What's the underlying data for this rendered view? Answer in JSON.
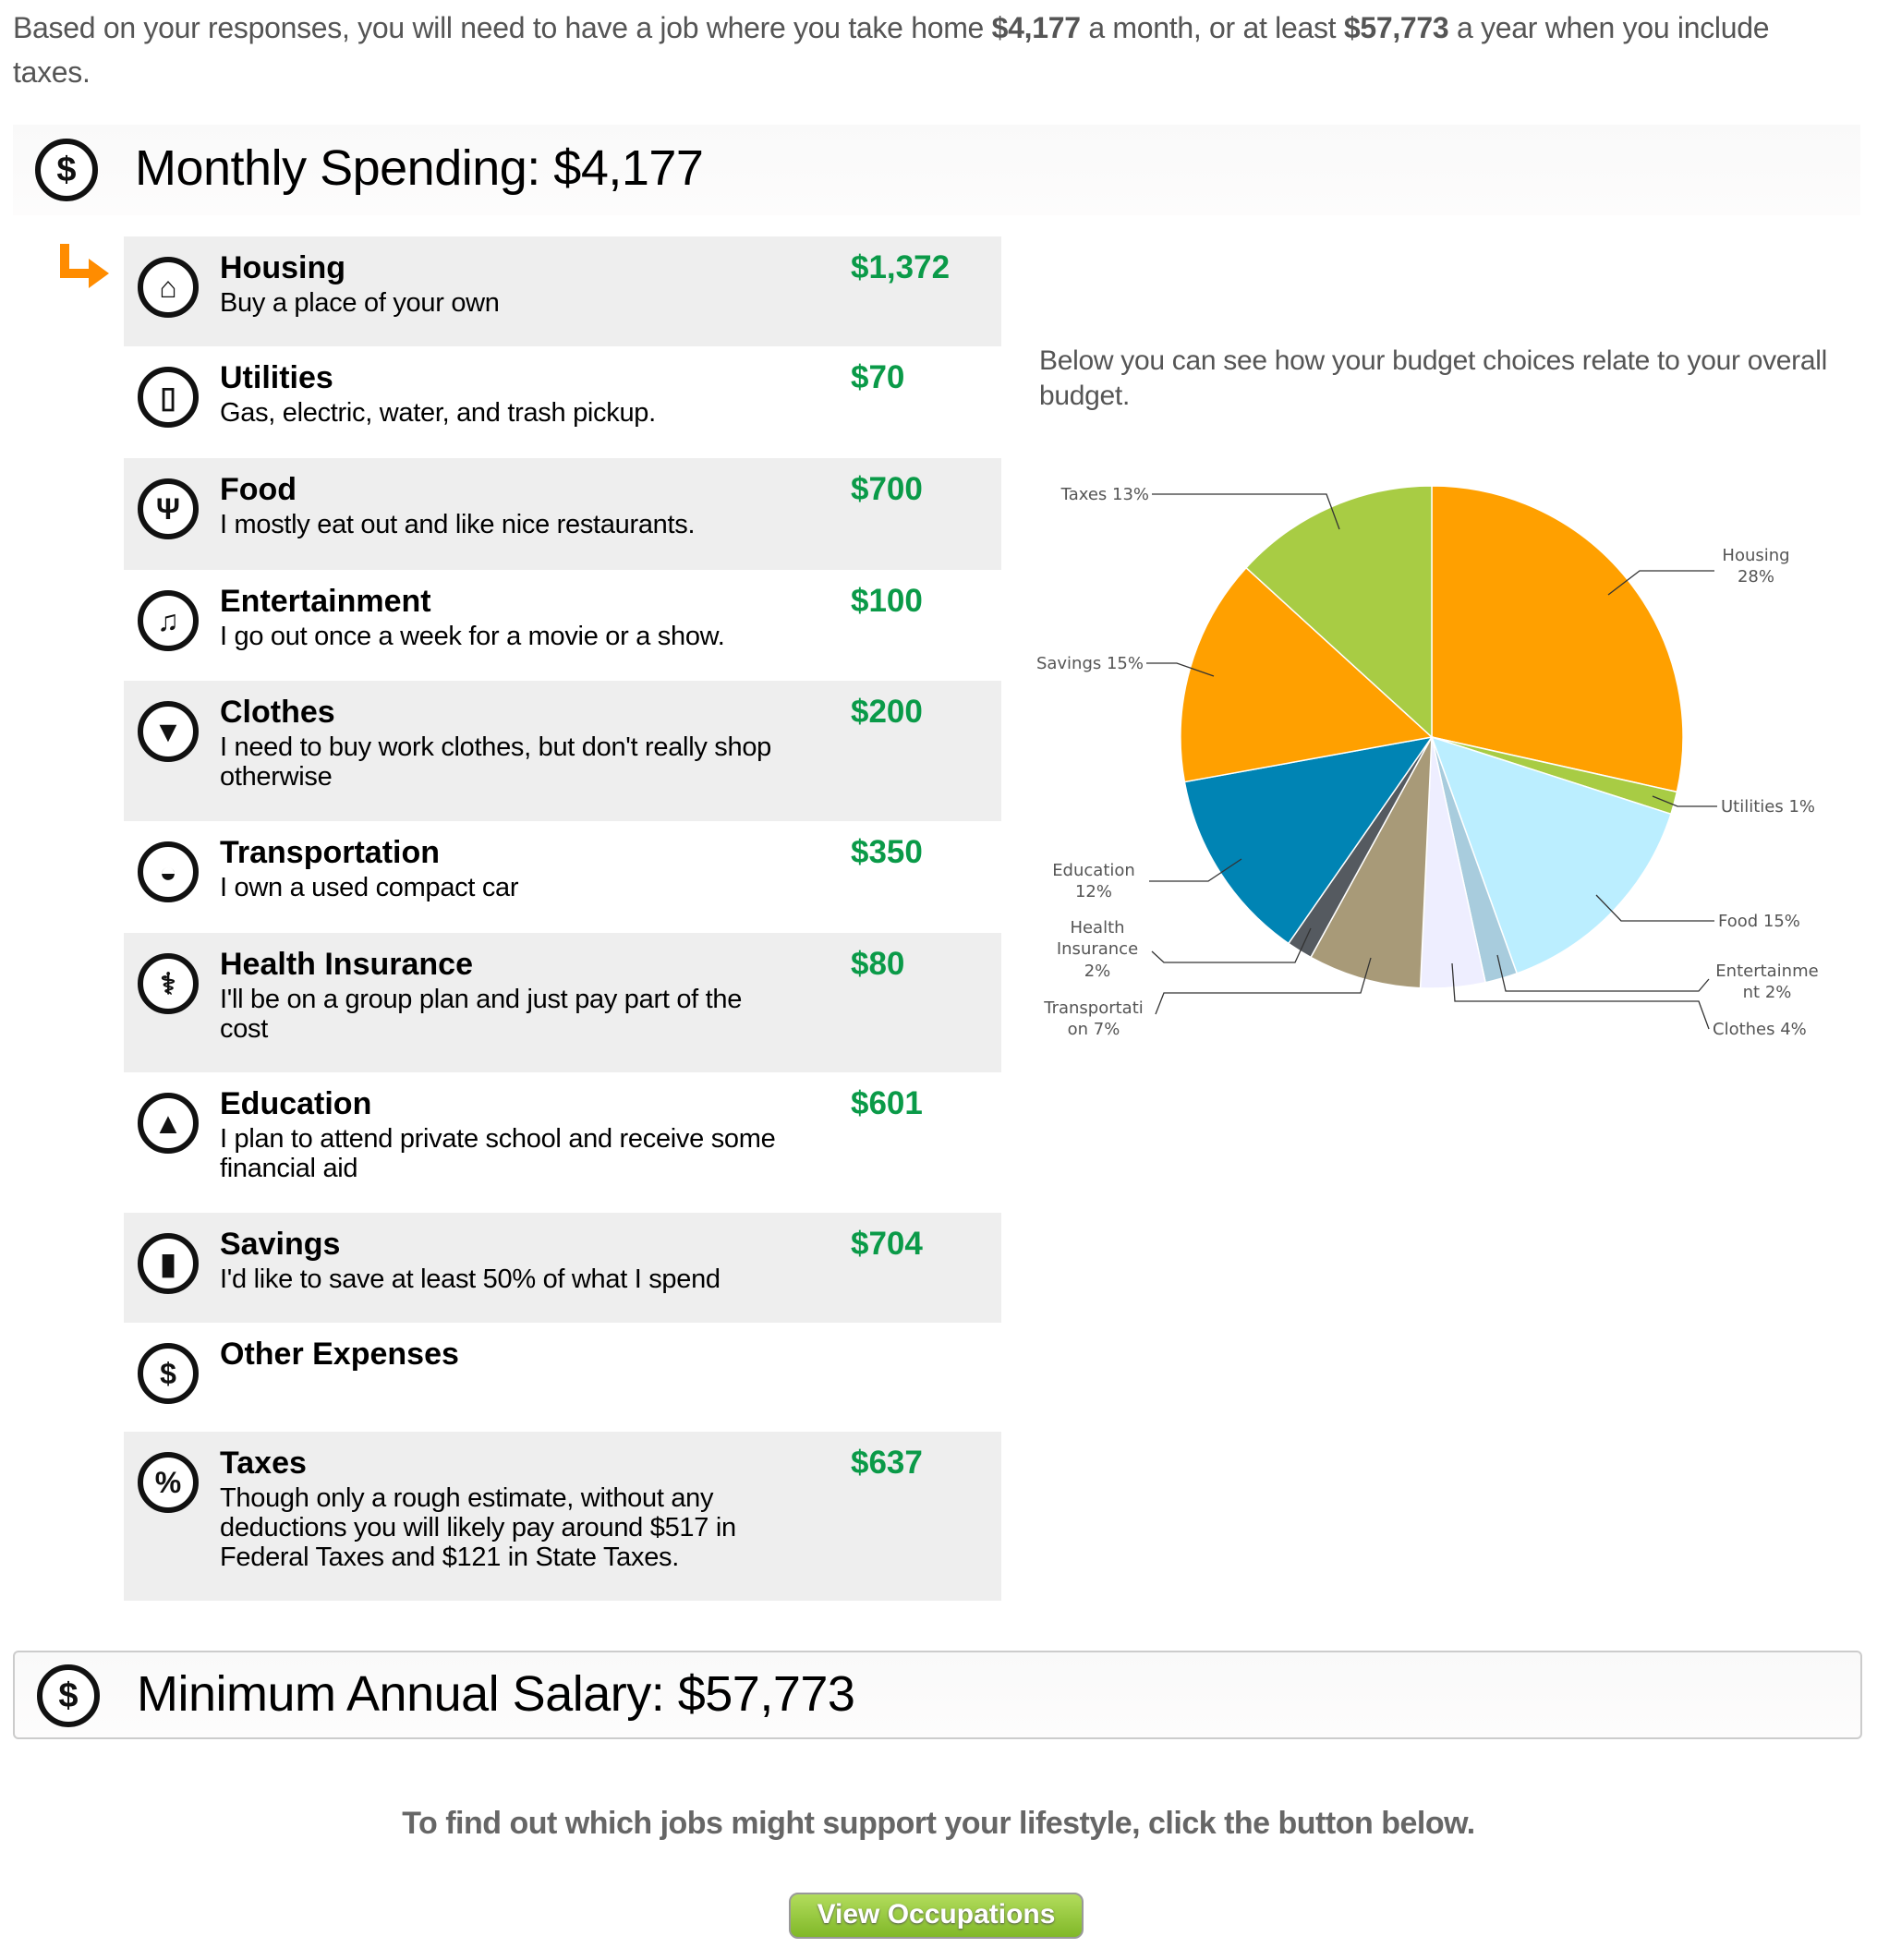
{
  "intro": {
    "text_1": "Based on your responses, you will need to have a job where you take home ",
    "monthly": "$4,177",
    "text_2": " a month, or at least ",
    "annual": "$57,773",
    "text_3": " a year when you include taxes."
  },
  "monthly_header": {
    "icon": "dollar-icon",
    "title": "Monthly Spending: $4,177"
  },
  "rows": [
    {
      "icon": "house-icon",
      "glyph": "⌂",
      "title": "Housing",
      "desc": "Buy a place of your own",
      "amount": "$1,372"
    },
    {
      "icon": "phone-icon",
      "glyph": "▯",
      "title": "Utilities",
      "desc": "Gas, electric, water, and trash pickup.",
      "amount": "$70"
    },
    {
      "icon": "fork-knife-icon",
      "glyph": "Ψ",
      "title": "Food",
      "desc": "I mostly eat out and like nice restaurants.",
      "amount": "$700"
    },
    {
      "icon": "music-note-icon",
      "glyph": "♫",
      "title": "Entertainment",
      "desc": "I go out once a week for a movie or a show.",
      "amount": "$100"
    },
    {
      "icon": "shirt-icon",
      "glyph": "▼",
      "title": "Clothes",
      "desc": "I need to buy work clothes, but don't really shop otherwise",
      "amount": "$200"
    },
    {
      "icon": "car-icon",
      "glyph": "◒",
      "title": "Transportation",
      "desc": "I own a used compact car",
      "amount": "$350"
    },
    {
      "icon": "caduceus-icon",
      "glyph": "⚕",
      "title": "Health Insurance",
      "desc": "I'll be on a group plan and just pay part of the cost",
      "amount": "$80"
    },
    {
      "icon": "graduation-cap-icon",
      "glyph": "▲",
      "title": "Education",
      "desc": "I plan to attend private school and receive some financial aid",
      "amount": "$601"
    },
    {
      "icon": "bar-chart-icon",
      "glyph": "▮",
      "title": "Savings",
      "desc": "I'd like to save at least 50% of what I spend",
      "amount": "$704"
    },
    {
      "icon": "dollar-icon",
      "glyph": "$",
      "title": "Other Expenses",
      "desc": "",
      "amount": ""
    },
    {
      "icon": "percent-icon",
      "glyph": "%",
      "title": "Taxes",
      "desc": "Though only a rough estimate, without any deductions you will likely pay around $517 in Federal Taxes and $121 in State Taxes.",
      "amount": "$637"
    }
  ],
  "chart_caption": "Below you can see how your budget choices relate to your overall budget.",
  "chart_data": {
    "type": "pie",
    "start": "top, clockwise",
    "slices": [
      {
        "name": "Housing",
        "value": 1372,
        "label": [
          "Housing",
          "28%"
        ],
        "color": "#ffa000"
      },
      {
        "name": "Utilities",
        "value": 70,
        "label": [
          "Utilities 1%"
        ],
        "color": "#a8cc44"
      },
      {
        "name": "Food",
        "value": 700,
        "label": [
          "Food 15%"
        ],
        "color": "#bbeeff"
      },
      {
        "name": "Entertainment",
        "value": 100,
        "label": [
          "Entertainme",
          "nt 2%"
        ],
        "color": "#a8ccdd"
      },
      {
        "name": "Clothes",
        "value": 200,
        "label": [
          "Clothes 4%"
        ],
        "color": "#eeeeff"
      },
      {
        "name": "Transportation",
        "value": 350,
        "label": [
          "Transportati",
          "on 7%"
        ],
        "color": "#a89a78"
      },
      {
        "name": "Health Insurance",
        "value": 80,
        "label": [
          "Health",
          "Insurance",
          "2%"
        ],
        "color": "#555a60"
      },
      {
        "name": "Education",
        "value": 601,
        "label": [
          "Education",
          "12%"
        ],
        "color": "#0084b4"
      },
      {
        "name": "Savings",
        "value": 704,
        "label": [
          "Savings 15%"
        ],
        "color": "#ffa000"
      },
      {
        "name": "Taxes",
        "value": 637,
        "label": [
          "Taxes 13%"
        ],
        "color": "#a8cc44"
      }
    ]
  },
  "annual_header": {
    "icon": "dollar-icon",
    "title": "Minimum Annual Salary: $57,773"
  },
  "cta_text": "To find out which jobs might support your lifestyle, click the button below.",
  "button_label": "View Occupations",
  "colors": {
    "amount_green": "#0a9a48",
    "arrow_orange": "#ff8c00",
    "button_green": "#8cc43a"
  }
}
